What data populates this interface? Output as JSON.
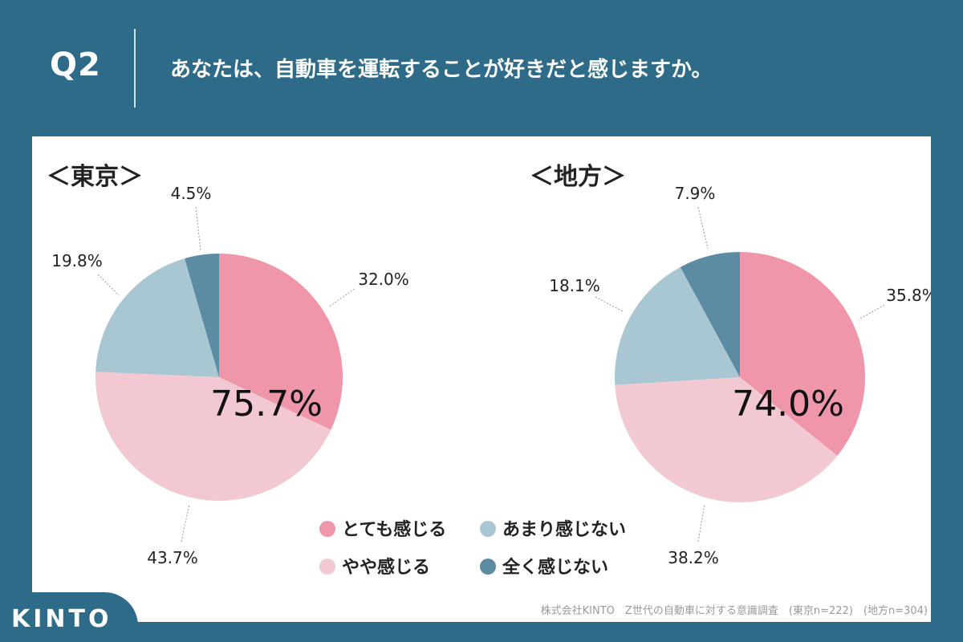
{
  "header": {
    "question_number": "Q2",
    "question_text": "あなたは、自動車を運転することが好きだと感じますか。"
  },
  "colors": {
    "background": "#2e6b88",
    "very": "#ef96ab",
    "somewhat": "#f2c8d2",
    "not_much": "#a9c6d3",
    "not_at_all": "#5b8ca3"
  },
  "chart_data": [
    {
      "type": "pie",
      "title": "＜東京＞",
      "highlight_total": "75.7%",
      "slices": [
        {
          "label": "とても感じる",
          "value": 32.0,
          "value_label": "32.0%"
        },
        {
          "label": "やや感じる",
          "value": 43.7,
          "value_label": "43.7%"
        },
        {
          "label": "あまり感じない",
          "value": 19.8,
          "value_label": "19.8%"
        },
        {
          "label": "全く感じない",
          "value": 4.5,
          "value_label": "4.5%"
        }
      ]
    },
    {
      "type": "pie",
      "title": "＜地方＞",
      "highlight_total": "74.0%",
      "slices": [
        {
          "label": "とても感じる",
          "value": 35.8,
          "value_label": "35.8%"
        },
        {
          "label": "やや感じる",
          "value": 38.2,
          "value_label": "38.2%"
        },
        {
          "label": "あまり感じない",
          "value": 18.1,
          "value_label": "18.1%"
        },
        {
          "label": "全く感じない",
          "value": 7.9,
          "value_label": "7.9%"
        }
      ]
    }
  ],
  "legend": [
    {
      "label": "とても感じる",
      "color": "#ef96ab"
    },
    {
      "label": "あまり感じない",
      "color": "#a9c6d3"
    },
    {
      "label": "やや感じる",
      "color": "#f2c8d2"
    },
    {
      "label": "全く感じない",
      "color": "#5b8ca3"
    }
  ],
  "footer": {
    "brand": "KINTO",
    "source": "株式会社KINTO　Z世代の自動車に対する意識調査　(東京n=222)　(地方n=304)"
  }
}
